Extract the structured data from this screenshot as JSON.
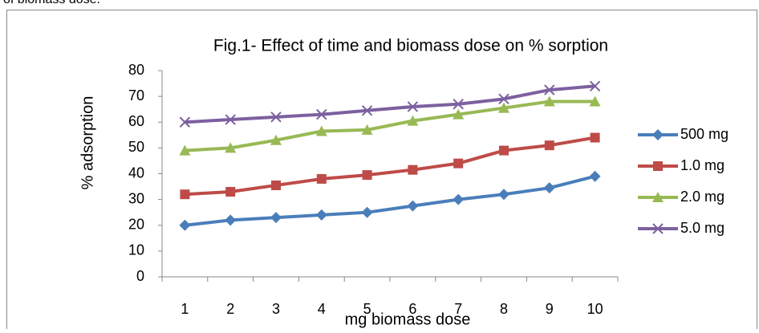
{
  "page_text": "of biomass dose.",
  "chart_data": {
    "type": "line",
    "title": "Fig.1- Effect of time and biomass dose on % sorption",
    "x_label": "mg biomass dose",
    "y_label": "% adsorption",
    "categories": [
      "1",
      "2",
      "3",
      "4",
      "5",
      "6",
      "7",
      "8",
      "9",
      "10"
    ],
    "ylim": [
      0,
      80
    ],
    "yticks": [
      0,
      10,
      20,
      30,
      40,
      50,
      60,
      70,
      80
    ],
    "grid": false,
    "legend": "right",
    "series": [
      {
        "name": "500 mg",
        "color": "#4a7ebb",
        "marker": "diamond",
        "values": [
          20,
          22,
          23,
          24,
          25,
          27.5,
          30,
          32,
          34.5,
          39
        ]
      },
      {
        "name": "1.0 mg",
        "color": "#be4b48",
        "marker": "square",
        "values": [
          32,
          33,
          35.5,
          38,
          39.5,
          41.5,
          44,
          49,
          51,
          54
        ]
      },
      {
        "name": "2.0 mg",
        "color": "#98b954",
        "marker": "triangle",
        "values": [
          49,
          50,
          53,
          56.5,
          57,
          60.5,
          63,
          65.5,
          68,
          68
        ]
      },
      {
        "name": "5.0 mg",
        "color": "#7d60a0",
        "marker": "x",
        "values": [
          60,
          61,
          62,
          63,
          64.5,
          66,
          67,
          69,
          72.5,
          74
        ]
      }
    ]
  }
}
